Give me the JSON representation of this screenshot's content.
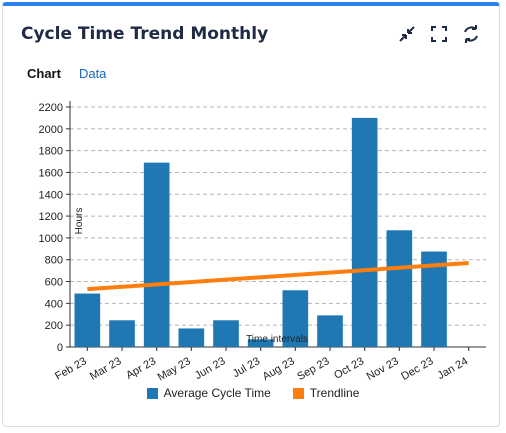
{
  "widget": {
    "title": "Cycle Time Trend Monthly",
    "tabs": [
      {
        "label": "Chart",
        "active": true
      },
      {
        "label": "Data",
        "active": false
      }
    ],
    "icons": [
      "collapse-icon",
      "fullscreen-icon",
      "refresh-icon"
    ]
  },
  "chart_data": {
    "type": "bar",
    "categories": [
      "Feb 23",
      "Mar 23",
      "Apr 23",
      "May 23",
      "Jun 23",
      "Jul 23",
      "Aug 23",
      "Sep 23",
      "Oct 23",
      "Nov 23",
      "Dec 23",
      "Jan 24"
    ],
    "series": [
      {
        "name": "Average Cycle Time",
        "color": "#1f77b4",
        "values": [
          490,
          245,
          1690,
          170,
          245,
          70,
          520,
          290,
          2100,
          1070,
          875,
          null
        ]
      }
    ],
    "trendline": {
      "name": "Trendline",
      "color": "#ff7f0e",
      "start": 530,
      "end": 770
    },
    "xlabel": "Time intervals",
    "ylabel": "Hours",
    "ylim": [
      0,
      2200
    ],
    "yticks": [
      0,
      200,
      400,
      600,
      800,
      1000,
      1200,
      1400,
      1600,
      1800,
      2000,
      2200
    ],
    "grid": true,
    "legend_position": "bottom"
  }
}
